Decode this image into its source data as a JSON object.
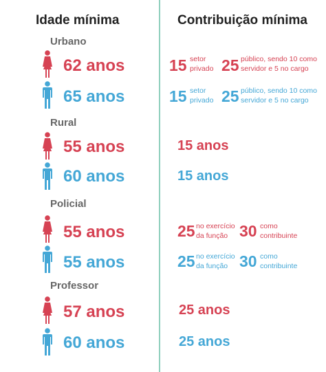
{
  "headers": {
    "left": "Idade mínima",
    "right": "Contribuição mínima"
  },
  "colors": {
    "female": "#d64253",
    "male": "#44a7d6",
    "divider": "#8fcfbd"
  },
  "sections": {
    "urbano": {
      "label": "Urbano",
      "female_age": "62 anos",
      "male_age": "65 anos",
      "female_setor_num": "15",
      "female_setor_text_1": "setor",
      "female_setor_text_2": "privado",
      "female_publico_num": "25",
      "female_publico_text_1": "público, sendo 10 como",
      "female_publico_text_2": "servidor e 5 no cargo",
      "male_setor_num": "15",
      "male_setor_text_1": "setor",
      "male_setor_text_2": "privado",
      "male_publico_num": "25",
      "male_publico_text_1": "público, sendo 10 como",
      "male_publico_text_2": "servidor e 5 no cargo"
    },
    "rural": {
      "label": "Rural",
      "female_age": "55 anos",
      "male_age": "60 anos",
      "female_contrib": "15 anos",
      "male_contrib": "15 anos"
    },
    "policial": {
      "label": "Policial",
      "female_age": "55 anos",
      "male_age": "55 anos",
      "female_exercicio_num": "25",
      "female_exercicio_text_1": "no exercício",
      "female_exercicio_text_2": "da função",
      "female_contribuinte_num": "30",
      "female_contribuinte_text_1": "como",
      "female_contribuinte_text_2": "contribuinte",
      "male_exercicio_num": "25",
      "male_exercicio_text_1": "no exercício",
      "male_exercicio_text_2": "da função",
      "male_contribuinte_num": "30",
      "male_contribuinte_text_1": "como",
      "male_contribuinte_text_2": "contribuinte"
    },
    "professor": {
      "label": "Professor",
      "female_age": "57 anos",
      "male_age": "60 anos",
      "female_contrib": "25 anos",
      "male_contrib": "25 anos"
    }
  }
}
